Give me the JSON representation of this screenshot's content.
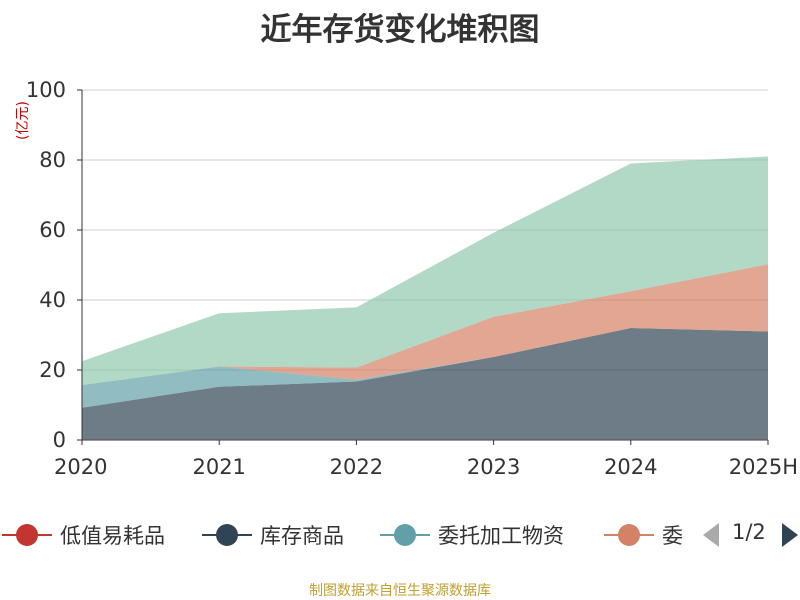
{
  "title": "近年存货变化堆积图",
  "unit": "(亿元)",
  "source": "制图数据来自恒生聚源数据库",
  "legend_pager": {
    "text": "1/2"
  },
  "legend_items": [
    {
      "name": "低值易耗品",
      "color": "#c23531"
    },
    {
      "name": "库存商品",
      "color": "#2f4554"
    },
    {
      "name": "委托加工物资",
      "color": "#61a0a8"
    },
    {
      "name": "委",
      "color": "#d48265"
    }
  ],
  "chart_data": {
    "type": "area",
    "stacked": true,
    "categories": [
      "2020",
      "2021",
      "2022",
      "2023",
      "2024",
      "2025H"
    ],
    "ylim": [
      0,
      100
    ],
    "yticks": [
      0,
      20,
      40,
      60,
      80,
      100
    ],
    "grid": true,
    "legend_position": "bottom",
    "series": [
      {
        "name": "低值易耗品",
        "color": "#c23531",
        "values": [
          0.2,
          0.2,
          0.2,
          0.2,
          0.2,
          0.2
        ]
      },
      {
        "name": "库存商品",
        "color": "#2f4554",
        "values": [
          9,
          15,
          16.5,
          23.5,
          31.8,
          30.8
        ]
      },
      {
        "name": "委托加工物资",
        "color": "#61a0a8",
        "values": [
          6.5,
          5.8,
          0.5,
          0,
          0,
          0
        ]
      },
      {
        "color": "#d48265",
        "values": [
          0,
          0,
          3.5,
          11.5,
          10.5,
          19.2
        ]
      },
      {
        "color": "#91c7ae",
        "values": [
          6.8,
          15.2,
          17.2,
          24,
          36.5,
          30.8
        ]
      }
    ]
  }
}
